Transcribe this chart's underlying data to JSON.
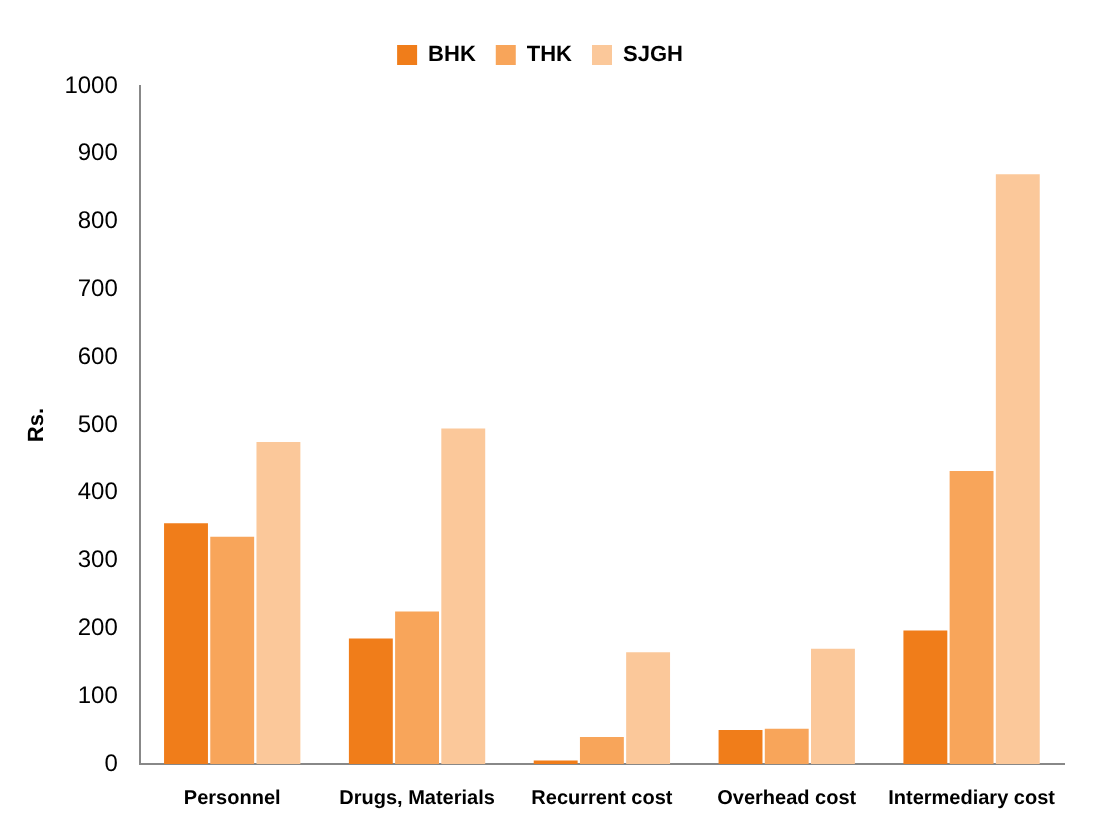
{
  "chart_data": {
    "type": "bar",
    "ylabel": "Rs.",
    "categories": [
      "Personnel",
      "Drugs, Materials",
      "Recurrent cost",
      "Overhead cost",
      "Intermediary cost"
    ],
    "series": [
      {
        "name": "BHK",
        "color": "#f07d1a",
        "values": [
          355,
          185,
          5,
          50,
          197
        ]
      },
      {
        "name": "THK",
        "color": "#f8a55a",
        "values": [
          335,
          225,
          40,
          52,
          432
        ]
      },
      {
        "name": "SJGH",
        "color": "#fbc89a",
        "values": [
          475,
          495,
          165,
          170,
          870
        ]
      }
    ],
    "ylim": [
      0,
      1000
    ],
    "yticks": [
      0,
      100,
      200,
      300,
      400,
      500,
      600,
      700,
      800,
      900,
      1000
    ],
    "grid": false,
    "legend": "top"
  }
}
